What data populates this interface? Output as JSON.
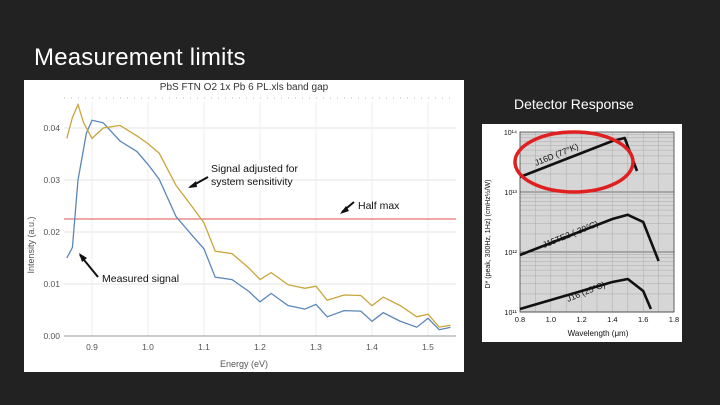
{
  "slide": {
    "title": "Measurement limits"
  },
  "left_chart": {
    "title": "PbS FTN O2 1x Pb 6 PL.xls band gap",
    "xlabel": "Energy (eV)",
    "ylabel": "Intensity (a.u.)",
    "annotations": {
      "adjusted_line1": "Signal adjusted for",
      "adjusted_line2": "system sensitivity",
      "half_max": "Half max",
      "measured": "Measured signal"
    },
    "colors": {
      "measured": "#5b86b8",
      "adjusted": "#c9a53c",
      "half_max": "#d9534f"
    }
  },
  "right_chart": {
    "title": "Detector Response",
    "xlabel": "Wavelength (μm)",
    "ylabel": "D* (peak, 300Hz, 1Hz) (cmHz½/W)",
    "curve_labels": [
      "J16D (77°K)",
      "J15TE2 (-30°C)",
      "J16 (25°C)"
    ],
    "highlight_color": "#e02020"
  },
  "chart_data": [
    {
      "type": "line",
      "x_ticks": [
        "0.9",
        "1.0",
        "1.1",
        "1.2",
        "1.3",
        "1.4",
        "1.5"
      ],
      "y_ticks": [
        "0.04",
        "0.03",
        "0.02",
        "0.01",
        "0.00"
      ],
      "xlim": [
        0.85,
        1.55
      ],
      "ylim": [
        0,
        0.045
      ],
      "half_max_y": 0.0225,
      "series": [
        {
          "key": "measured",
          "x": [
            0.855,
            0.865,
            0.875,
            0.89,
            0.9,
            0.92,
            0.95,
            0.98,
            1.0,
            1.02,
            1.05,
            1.08,
            1.1,
            1.12,
            1.15,
            1.18,
            1.2,
            1.22,
            1.25,
            1.28,
            1.3,
            1.32,
            1.35,
            1.38,
            1.4,
            1.42,
            1.45,
            1.48,
            1.5,
            1.52,
            1.54
          ],
          "y": [
            0.015,
            0.017,
            0.03,
            0.039,
            0.0415,
            0.041,
            0.0375,
            0.0355,
            0.033,
            0.029,
            0.024,
            0.019,
            0.016,
            0.0125,
            0.01,
            0.0085,
            0.0075,
            0.007,
            0.0065,
            0.0055,
            0.005,
            0.0048,
            0.0045,
            0.0042,
            0.004,
            0.0035,
            0.003,
            0.0025,
            0.0022,
            0.002,
            0.0018
          ]
        },
        {
          "key": "adjusted",
          "x": [
            0.855,
            0.865,
            0.875,
            0.885,
            0.9,
            0.92,
            0.95,
            0.98,
            1.0,
            1.02,
            1.05,
            1.08,
            1.1,
            1.12,
            1.15,
            1.18,
            1.2,
            1.22,
            1.25,
            1.28,
            1.3,
            1.32,
            1.35,
            1.38,
            1.4,
            1.42,
            1.45,
            1.48,
            1.5,
            1.52,
            1.54
          ],
          "y": [
            0.038,
            0.042,
            0.0445,
            0.041,
            0.038,
            0.04,
            0.0405,
            0.0385,
            0.037,
            0.034,
            0.03,
            0.0245,
            0.021,
            0.0175,
            0.015,
            0.013,
            0.0118,
            0.011,
            0.0105,
            0.0095,
            0.0085,
            0.008,
            0.0075,
            0.0072,
            0.007,
            0.0065,
            0.006,
            0.0045,
            0.003,
            0.0025,
            0.0022
          ]
        }
      ]
    },
    {
      "type": "line",
      "x_ticks": [
        "0.8",
        "1.0",
        "1.2",
        "1.4",
        "1.6",
        "1.8"
      ],
      "y_ticks": [
        "10¹⁴",
        "10¹³",
        "10¹²",
        "10¹¹"
      ],
      "xlim": [
        0.8,
        1.8
      ],
      "ylim_log10": [
        11,
        14
      ],
      "series": [
        {
          "x": [
            0.8,
            1.0,
            1.2,
            1.4,
            1.48,
            1.56
          ],
          "y": [
            13.25,
            13.45,
            13.65,
            13.85,
            13.9,
            13.35
          ]
        },
        {
          "x": [
            0.8,
            1.0,
            1.2,
            1.4,
            1.5,
            1.6,
            1.7
          ],
          "y": [
            11.95,
            12.15,
            12.35,
            12.55,
            12.62,
            12.5,
            11.85
          ]
        },
        {
          "x": [
            0.8,
            1.0,
            1.2,
            1.4,
            1.5,
            1.6,
            1.65
          ],
          "y": [
            11.05,
            11.2,
            11.35,
            11.5,
            11.55,
            11.35,
            11.05
          ]
        }
      ]
    }
  ]
}
